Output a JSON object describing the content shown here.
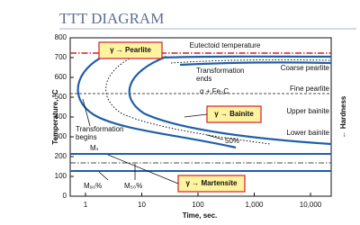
{
  "header": {
    "title": "TTT DIAGRAM"
  },
  "axes": {
    "y_label": "Temperature, °C",
    "x_label": "Time, sec.",
    "y_ticks": [
      "800",
      "700",
      "600",
      "500",
      "400",
      "300",
      "200",
      "100",
      "0"
    ],
    "x_ticks": [
      "1",
      "10",
      "100",
      "1,000",
      "10,000"
    ]
  },
  "labels": {
    "pearlite": "γ → Pearlite",
    "bainite": "γ → Bainite",
    "martensite": "γ → Martensite",
    "eutectoid": "Eutectoid temperature",
    "ends": [
      "Transformation",
      "ends"
    ],
    "phase": "α + Fe₃C",
    "coarse_pearlite": "Coarse pearlite",
    "fine_pearlite": "Fine pearlite",
    "upper_bainite": "Upper bainite",
    "lower_bainite": "Lower bainite",
    "fifty": "50%",
    "begins": [
      "Transformation",
      "begins"
    ],
    "ms": "Mₛ",
    "m90": "M₉₀%",
    "m50": "M₅₀%",
    "hardness": "← Hardness"
  }
}
